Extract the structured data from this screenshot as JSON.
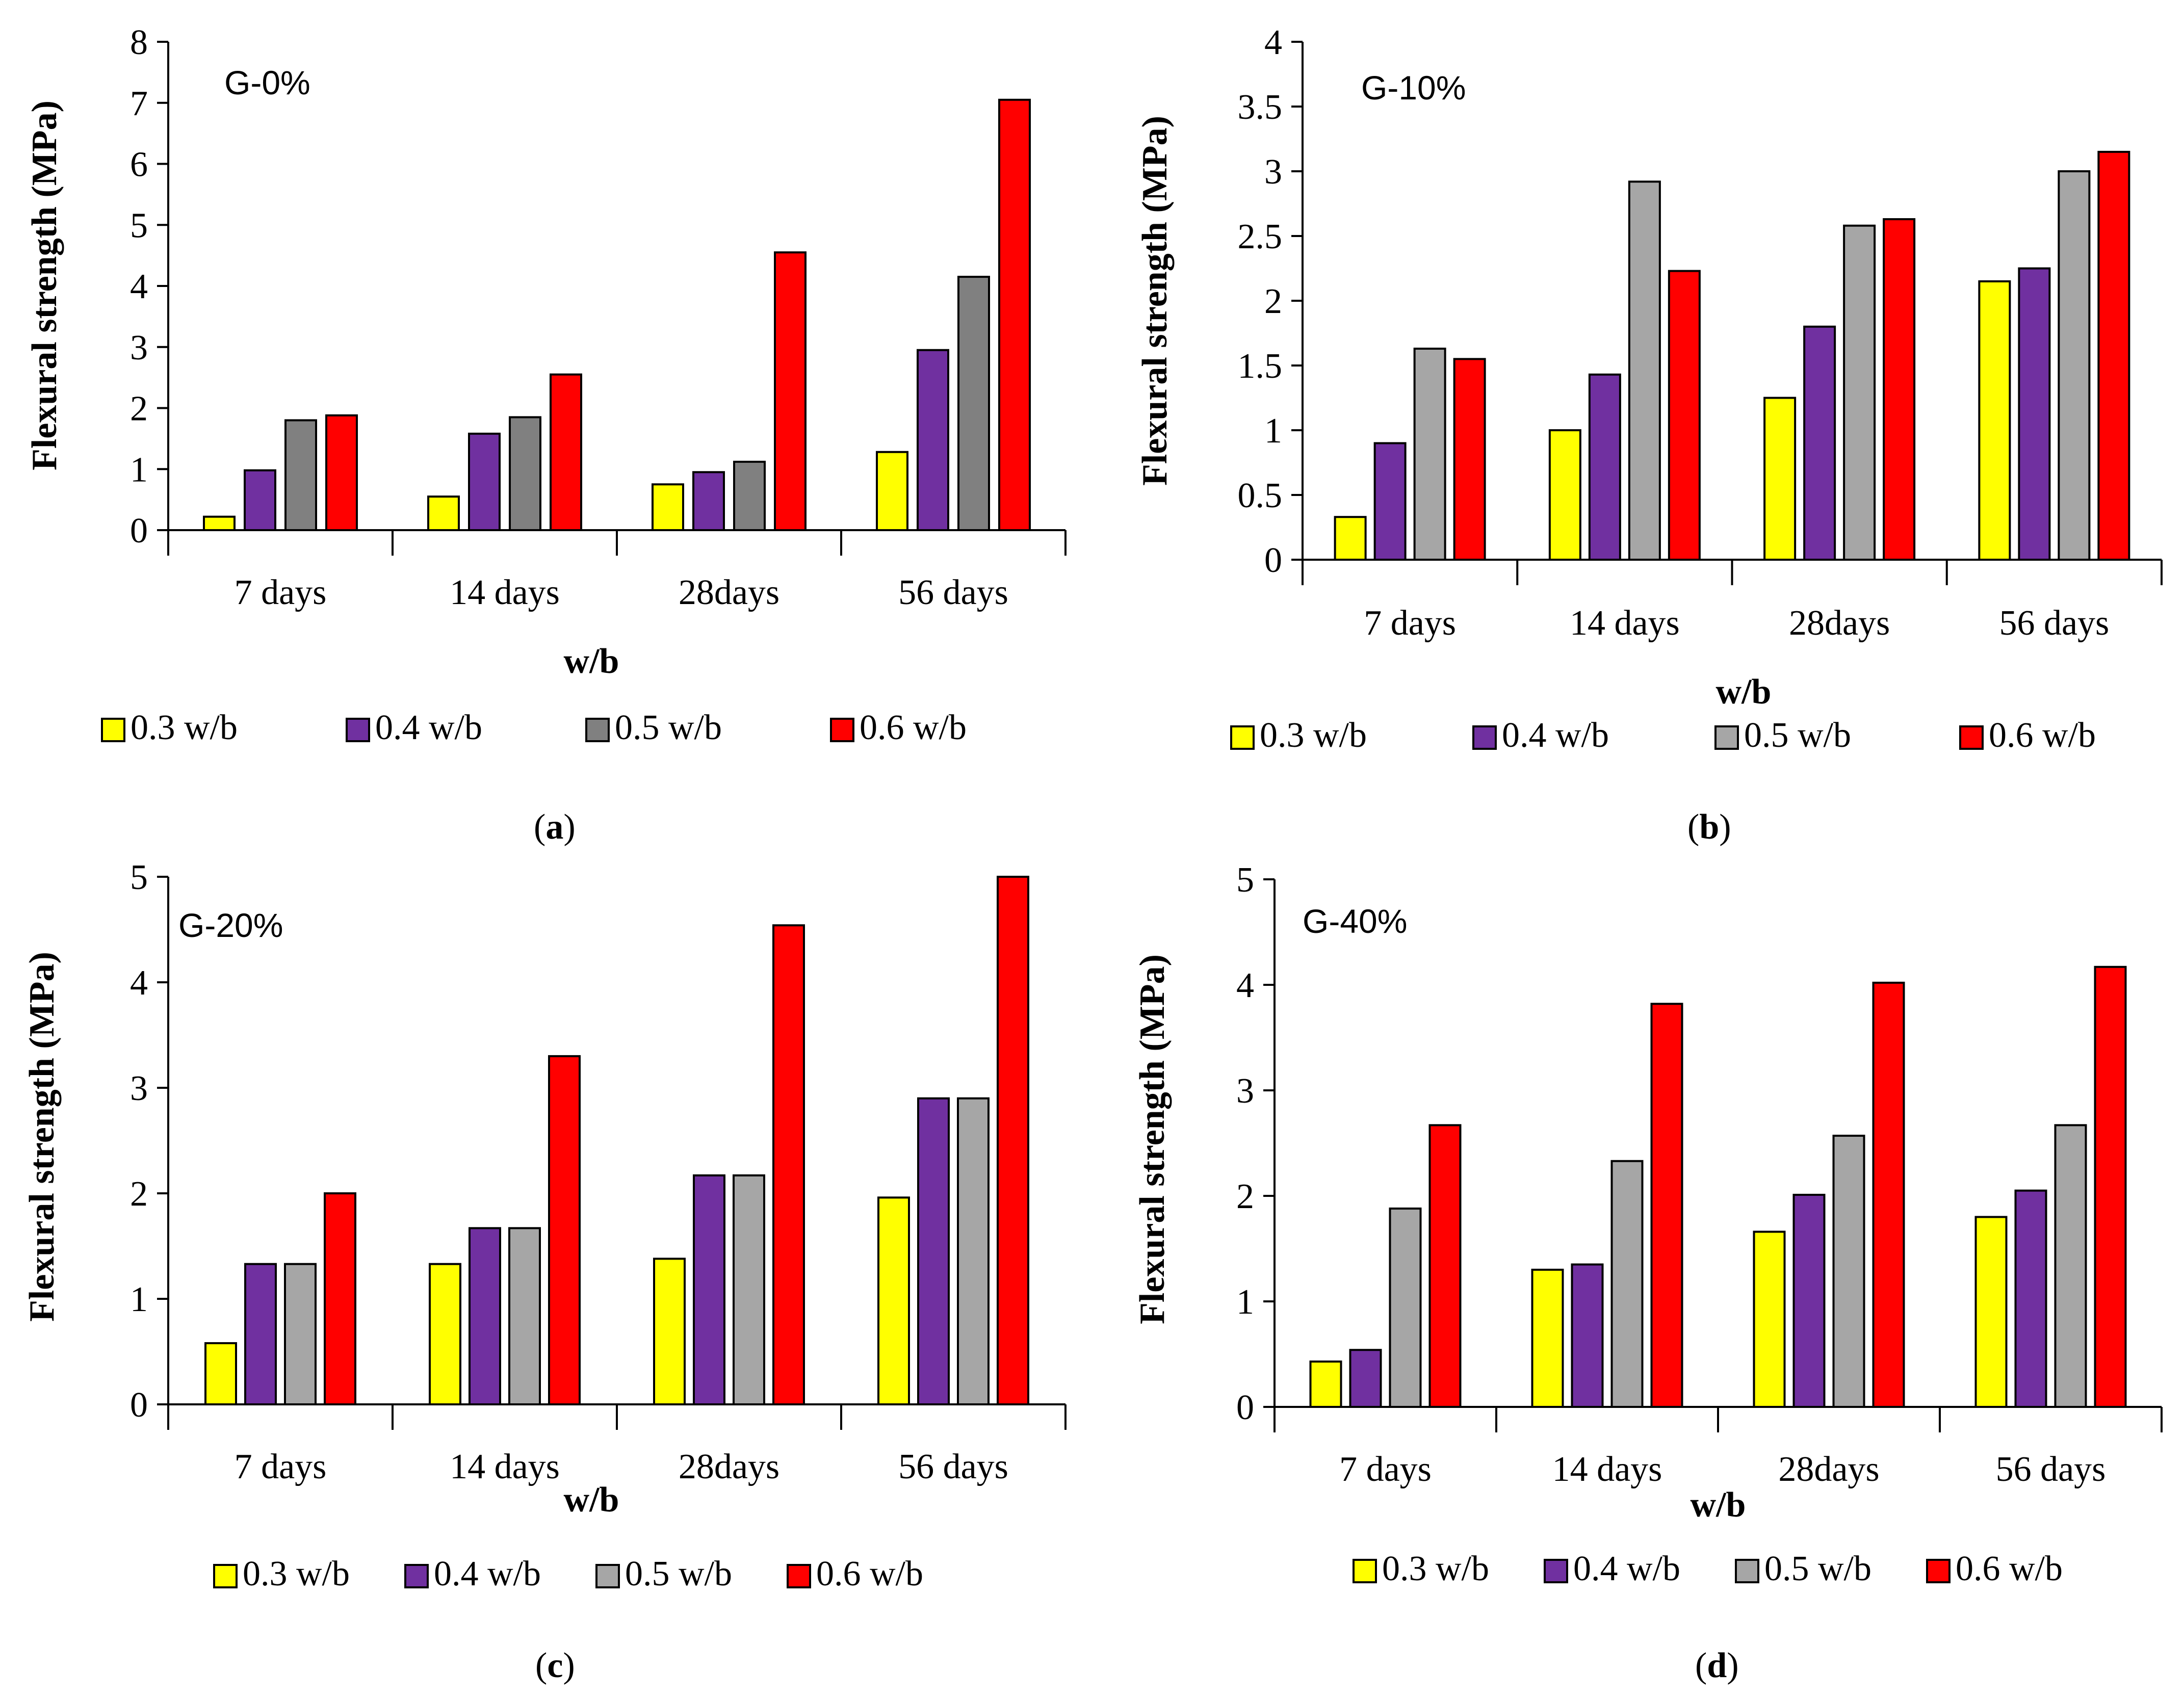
{
  "colors": {
    "0.3 w/b": "#ffff00",
    "0.4 w/b": "#7030a0",
    "0.5 w/b a": "#808080",
    "0.5 w/b": "#a6a6a6",
    "0.6 w/b": "#ff0000"
  },
  "chart_data": [
    {
      "type": "bar",
      "panel": "a",
      "title": "G-0%",
      "xlabel": "w/b",
      "ylabel": "Flexural strength (MPa)",
      "categories": [
        "7 days",
        "14 days",
        "28days",
        "56 days"
      ],
      "ylim": [
        0,
        8
      ],
      "yticks": [
        0,
        1,
        2,
        3,
        4,
        5,
        6,
        7,
        8
      ],
      "series": [
        {
          "name": "0.3 w/b",
          "color": "#ffff00",
          "values": [
            0.22,
            0.55,
            0.75,
            1.28
          ]
        },
        {
          "name": "0.4 w/b",
          "color": "#7030a0",
          "values": [
            0.98,
            1.58,
            0.95,
            2.95
          ]
        },
        {
          "name": "0.5 w/b",
          "color": "#808080",
          "values": [
            1.8,
            1.85,
            1.12,
            4.15
          ]
        },
        {
          "name": "0.6 w/b",
          "color": "#ff0000",
          "values": [
            1.88,
            2.55,
            4.55,
            7.05
          ]
        }
      ],
      "caption": "a"
    },
    {
      "type": "bar",
      "panel": "b",
      "title": "G-10%",
      "xlabel": "w/b",
      "ylabel": "Flexural strength (MPa)",
      "categories": [
        "7 days",
        "14 days",
        "28days",
        "56 days"
      ],
      "ylim": [
        0,
        4
      ],
      "yticks": [
        "0",
        "0.5",
        "1",
        "1.5",
        "2",
        "2.5",
        "3",
        "3.5",
        "4"
      ],
      "series": [
        {
          "name": "0.3 w/b",
          "color": "#ffff00",
          "values": [
            0.33,
            1.0,
            1.25,
            2.15
          ]
        },
        {
          "name": "0.4 w/b",
          "color": "#7030a0",
          "values": [
            0.9,
            1.43,
            1.8,
            2.25
          ]
        },
        {
          "name": "0.5 w/b",
          "color": "#a6a6a6",
          "values": [
            1.63,
            2.92,
            2.58,
            3.0
          ]
        },
        {
          "name": "0.6 w/b",
          "color": "#ff0000",
          "values": [
            1.55,
            2.23,
            2.63,
            3.15
          ]
        }
      ],
      "caption": "b"
    },
    {
      "type": "bar",
      "panel": "c",
      "title": "G-20%",
      "xlabel": "w/b",
      "ylabel": "Flexural strength (MPa)",
      "categories": [
        "7 days",
        "14 days",
        "28days",
        "56 days"
      ],
      "ylim": [
        0,
        5
      ],
      "yticks": [
        0,
        1,
        2,
        3,
        4,
        5
      ],
      "series": [
        {
          "name": "0.3 w/b",
          "color": "#ffff00",
          "values": [
            0.58,
            1.33,
            1.38,
            1.96
          ]
        },
        {
          "name": "0.4 w/b",
          "color": "#7030a0",
          "values": [
            1.33,
            1.67,
            2.17,
            2.9
          ]
        },
        {
          "name": "0.5 w/b",
          "color": "#a6a6a6",
          "values": [
            1.33,
            1.67,
            2.17,
            2.9
          ]
        },
        {
          "name": "0.6 w/b",
          "color": "#ff0000",
          "values": [
            2.0,
            3.3,
            4.54,
            5.0
          ]
        }
      ],
      "caption": "c"
    },
    {
      "type": "bar",
      "panel": "d",
      "title": "G-40%",
      "xlabel": "w/b",
      "ylabel": "Flexural strength (MPa)",
      "categories": [
        "7 days",
        "14 days",
        "28days",
        "56 days"
      ],
      "ylim": [
        0,
        5
      ],
      "yticks": [
        0,
        1,
        2,
        3,
        4,
        5
      ],
      "series": [
        {
          "name": "0.3 w/b",
          "color": "#ffff00",
          "values": [
            0.43,
            1.3,
            1.66,
            1.8
          ]
        },
        {
          "name": "0.4 w/b",
          "color": "#7030a0",
          "values": [
            0.54,
            1.35,
            2.01,
            2.05
          ]
        },
        {
          "name": "0.5 w/b",
          "color": "#a6a6a6",
          "values": [
            1.88,
            2.33,
            2.57,
            2.67
          ]
        },
        {
          "name": "0.6 w/b",
          "color": "#ff0000",
          "values": [
            2.67,
            3.82,
            4.02,
            4.17
          ]
        }
      ],
      "caption": "d"
    }
  ]
}
